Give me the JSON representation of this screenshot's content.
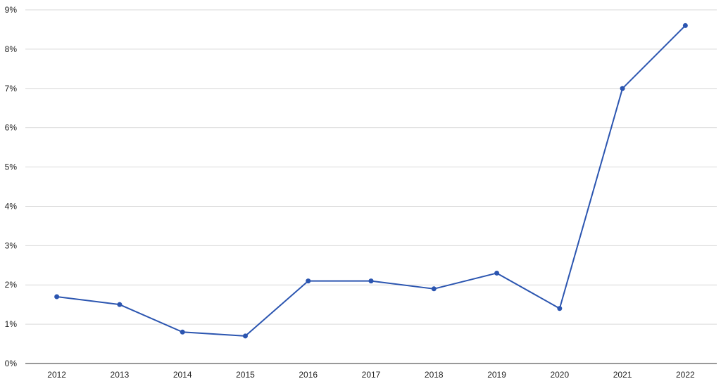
{
  "chart_data": {
    "type": "line",
    "title": "",
    "xlabel": "",
    "ylabel": "",
    "categories": [
      "2012",
      "2013",
      "2014",
      "2015",
      "2016",
      "2017",
      "2018",
      "2019",
      "2020",
      "2021",
      "2022"
    ],
    "series": [
      {
        "values": [
          1.7,
          1.5,
          0.8,
          0.7,
          2.1,
          2.1,
          1.9,
          2.3,
          1.4,
          7.0,
          8.6
        ],
        "color": "#2b55b0"
      }
    ],
    "ylim": [
      0,
      9
    ],
    "y_ticks": [
      {
        "value": 0,
        "label": "0%"
      },
      {
        "value": 1,
        "label": "1%"
      },
      {
        "value": 2,
        "label": "2%"
      },
      {
        "value": 3,
        "label": "3%"
      },
      {
        "value": 4,
        "label": "4%"
      },
      {
        "value": 5,
        "label": "5%"
      },
      {
        "value": 6,
        "label": "6%"
      },
      {
        "value": 7,
        "label": "7%"
      },
      {
        "value": 8,
        "label": "8%"
      },
      {
        "value": 9,
        "label": "9%"
      }
    ],
    "grid": true,
    "legend": "none"
  }
}
